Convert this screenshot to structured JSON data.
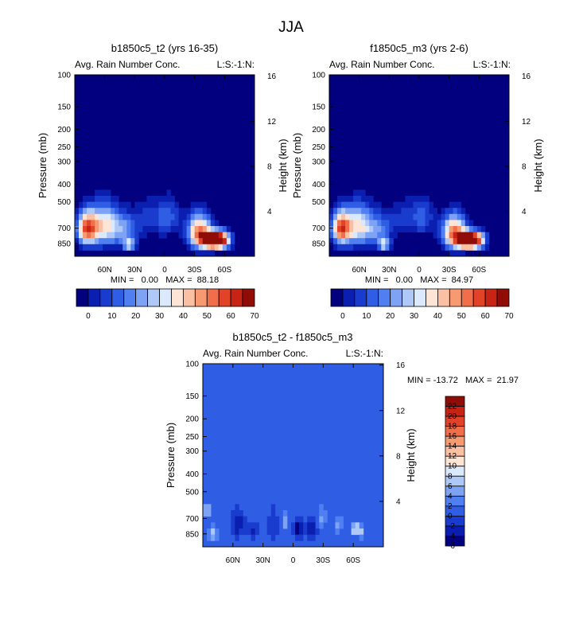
{
  "figure": {
    "title": "JJA"
  },
  "palette": {
    "absolute": [
      "#02007f",
      "#0a1fb0",
      "#1a3cce",
      "#2f5ee4",
      "#4f7ff0",
      "#7ea2f4",
      "#aec8f8",
      "#dbe9fc",
      "#fde4d4",
      "#fbc0a4",
      "#f79a72",
      "#f06f4a",
      "#e04328",
      "#c82416",
      "#8f0d06"
    ],
    "difference": [
      "#02007f",
      "#0a1fb0",
      "#1a3cce",
      "#2f5ee4",
      "#4f7ff0",
      "#7ea2f4",
      "#aec8f8",
      "#dbe9fc",
      "#fde4d4",
      "#fbc0a4",
      "#f79a72",
      "#f06f4a",
      "#e04328",
      "#c82416",
      "#8f0d06"
    ]
  },
  "chart_data": [
    {
      "type": "heatmap",
      "title": "b1850c5_t2 (yrs 16-35)",
      "variable_label": "Avg. Rain Number Conc.",
      "level_label": "L:S:-1:N:",
      "ylabel": "Pressure (mb)",
      "ylabel_right": "Height (km)",
      "x_ticks": [
        "60N",
        "30N",
        "0",
        "30S",
        "60S"
      ],
      "x_tick_values": [
        60,
        30,
        0,
        -30,
        -60
      ],
      "xlim": [
        90,
        -90
      ],
      "y_ticks": [
        "100",
        "150",
        "200",
        "250",
        "300",
        "400",
        "500",
        "700",
        "850"
      ],
      "y_tick_values": [
        100,
        150,
        200,
        250,
        300,
        400,
        500,
        700,
        850
      ],
      "ylim": [
        100,
        1000
      ],
      "height_ticks": [
        "4",
        "8",
        "12",
        "16"
      ],
      "height_tick_values": [
        4,
        8,
        12,
        16
      ],
      "min": 0.0,
      "max": 88.18,
      "stats_text": "MIN =   0.00   MAX =  88.18",
      "colorbar_labels": [
        "0",
        "10",
        "20",
        "30",
        "40",
        "50",
        "60",
        "70"
      ],
      "colorbar_levels": [
        0,
        5,
        10,
        15,
        20,
        25,
        30,
        35,
        40,
        45,
        50,
        55,
        60,
        65,
        70
      ],
      "background_value": -2,
      "features": [
        {
          "lat": 78,
          "p": 700,
          "value": 60,
          "wlat": 10,
          "wp": 150
        },
        {
          "lat": 60,
          "p": 680,
          "value": 42,
          "wlat": 14,
          "wp": 180
        },
        {
          "lat": 40,
          "p": 720,
          "value": 22,
          "wlat": 12,
          "wp": 150
        },
        {
          "lat": 35,
          "p": 860,
          "value": 35,
          "wlat": 6,
          "wp": 60
        },
        {
          "lat": 15,
          "p": 620,
          "value": 12,
          "wlat": 18,
          "wp": 160
        },
        {
          "lat": -5,
          "p": 600,
          "value": 14,
          "wlat": 12,
          "wp": 150
        },
        {
          "lat": -35,
          "p": 740,
          "value": 60,
          "wlat": 12,
          "wp": 160
        },
        {
          "lat": -48,
          "p": 820,
          "value": 82,
          "wlat": 10,
          "wp": 80
        },
        {
          "lat": -58,
          "p": 810,
          "value": 50,
          "wlat": 9,
          "wp": 90
        }
      ]
    },
    {
      "type": "heatmap",
      "title": "f1850c5_m3 (yrs 2-6)",
      "variable_label": "Avg. Rain Number Conc.",
      "level_label": "L:S:-1:N:",
      "ylabel": "Pressure (mb)",
      "ylabel_right": "Height (km)",
      "x_ticks": [
        "60N",
        "30N",
        "0",
        "30S",
        "60S"
      ],
      "x_tick_values": [
        60,
        30,
        0,
        -30,
        -60
      ],
      "xlim": [
        90,
        -90
      ],
      "y_ticks": [
        "100",
        "150",
        "200",
        "250",
        "300",
        "400",
        "500",
        "700",
        "850"
      ],
      "y_tick_values": [
        100,
        150,
        200,
        250,
        300,
        400,
        500,
        700,
        850
      ],
      "ylim": [
        100,
        1000
      ],
      "height_ticks": [
        "4",
        "8",
        "12",
        "16"
      ],
      "height_tick_values": [
        4,
        8,
        12,
        16
      ],
      "min": 0.0,
      "max": 84.97,
      "stats_text": "MIN =   0.00   MAX =  84.97",
      "colorbar_labels": [
        "0",
        "10",
        "20",
        "30",
        "40",
        "50",
        "60",
        "70"
      ],
      "colorbar_levels": [
        0,
        5,
        10,
        15,
        20,
        25,
        30,
        35,
        40,
        45,
        50,
        55,
        60,
        65,
        70
      ],
      "background_value": -2,
      "features": [
        {
          "lat": 78,
          "p": 700,
          "value": 58,
          "wlat": 10,
          "wp": 150
        },
        {
          "lat": 60,
          "p": 680,
          "value": 40,
          "wlat": 14,
          "wp": 180
        },
        {
          "lat": 40,
          "p": 720,
          "value": 20,
          "wlat": 12,
          "wp": 150
        },
        {
          "lat": 35,
          "p": 860,
          "value": 33,
          "wlat": 6,
          "wp": 60
        },
        {
          "lat": 15,
          "p": 620,
          "value": 11,
          "wlat": 18,
          "wp": 160
        },
        {
          "lat": -5,
          "p": 600,
          "value": 13,
          "wlat": 12,
          "wp": 150
        },
        {
          "lat": -35,
          "p": 740,
          "value": 58,
          "wlat": 12,
          "wp": 160
        },
        {
          "lat": -48,
          "p": 820,
          "value": 80,
          "wlat": 10,
          "wp": 80
        },
        {
          "lat": -58,
          "p": 810,
          "value": 48,
          "wlat": 9,
          "wp": 90
        }
      ]
    },
    {
      "type": "heatmap",
      "title": "b1850c5_t2 - f1850c5_m3",
      "variable_label": "Avg. Rain Number Conc.",
      "level_label": "L:S:-1:N:",
      "ylabel": "Pressure (mb)",
      "ylabel_right": "Height (km)",
      "x_ticks": [
        "60N",
        "30N",
        "0",
        "30S",
        "60S"
      ],
      "x_tick_values": [
        60,
        30,
        0,
        -30,
        -60
      ],
      "xlim": [
        90,
        -90
      ],
      "y_ticks": [
        "100",
        "150",
        "200",
        "250",
        "300",
        "400",
        "500",
        "700",
        "850"
      ],
      "y_tick_values": [
        100,
        150,
        200,
        250,
        300,
        400,
        500,
        700,
        850
      ],
      "ylim": [
        100,
        1000
      ],
      "height_ticks": [
        "4",
        "8",
        "12",
        "16"
      ],
      "height_tick_values": [
        4,
        8,
        12,
        16
      ],
      "min": -13.72,
      "max": 21.97,
      "stats_text": "MIN = -13.72   MAX =  21.97",
      "colorbar_labels": [
        "22",
        "20",
        "18",
        "16",
        "14",
        "12",
        "10",
        "8",
        "6",
        "4",
        "2",
        "0",
        "-2",
        "-4",
        "-6"
      ],
      "colorbar_levels": [
        -6,
        -4,
        -2,
        0,
        2,
        4,
        6,
        8,
        10,
        12,
        14,
        16,
        18,
        20,
        22
      ],
      "background_value": 1,
      "features": [
        {
          "lat": 86,
          "p": 640,
          "value": 14,
          "wlat": 2,
          "wp": 50
        },
        {
          "lat": 80,
          "p": 840,
          "value": 8,
          "wlat": 4,
          "wp": 60
        },
        {
          "lat": 55,
          "p": 750,
          "value": -4,
          "wlat": 6,
          "wp": 120
        },
        {
          "lat": 40,
          "p": 820,
          "value": -3,
          "wlat": 5,
          "wp": 80
        },
        {
          "lat": 20,
          "p": 760,
          "value": -2,
          "wlat": 5,
          "wp": 150
        },
        {
          "lat": 8,
          "p": 720,
          "value": 6,
          "wlat": 3,
          "wp": 70
        },
        {
          "lat": -5,
          "p": 790,
          "value": -6,
          "wlat": 4,
          "wp": 90
        },
        {
          "lat": -18,
          "p": 800,
          "value": -5,
          "wlat": 5,
          "wp": 90
        },
        {
          "lat": -28,
          "p": 700,
          "value": 5,
          "wlat": 4,
          "wp": 80
        },
        {
          "lat": -45,
          "p": 760,
          "value": 6,
          "wlat": 3,
          "wp": 70
        },
        {
          "lat": -62,
          "p": 800,
          "value": 12,
          "wlat": 3,
          "wp": 60
        },
        {
          "lat": -68,
          "p": 820,
          "value": 6,
          "wlat": 3,
          "wp": 60
        }
      ]
    }
  ]
}
